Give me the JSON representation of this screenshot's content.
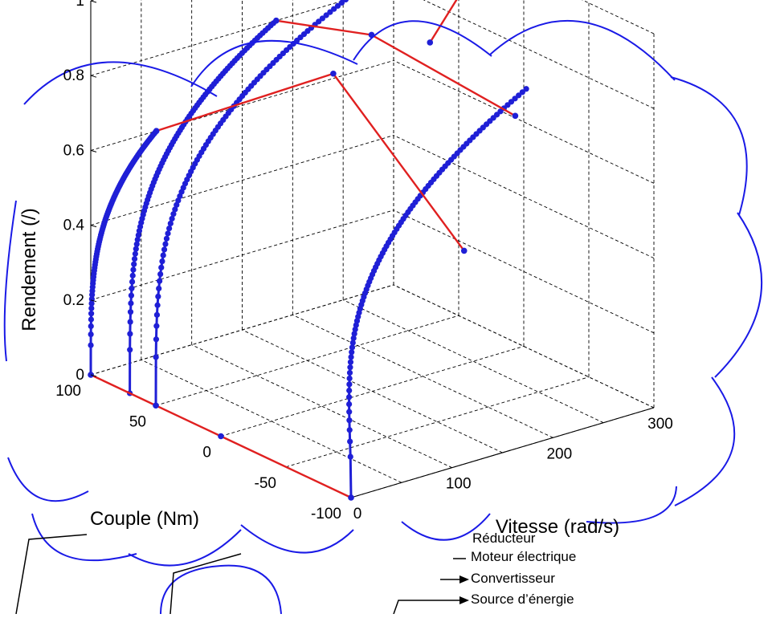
{
  "chart_data": {
    "type": "line",
    "projection": "3d",
    "title": "",
    "xlabel": "Vitesse (rad/s)",
    "ylabel": "Couple (Nm)",
    "zlabel": "Rendement (/)",
    "xlim": [
      0,
      300
    ],
    "ylim": [
      -100,
      100
    ],
    "zlim": [
      0,
      1
    ],
    "x_ticks": [
      "0",
      "100",
      "200",
      "300"
    ],
    "y_ticks": [
      "100",
      "50",
      "0",
      "-50",
      "-100"
    ],
    "z_ticks": [
      "0",
      "0.2",
      "0.4",
      "0.6",
      "0.8",
      "1"
    ],
    "grid": "on",
    "colors": {
      "curves": "#1f1fd6",
      "links": "#e02020",
      "clouds": "#1a1ae6",
      "arrows": "#000000"
    },
    "series": [
      {
        "color": "#1f1fd6",
        "markers": "dots",
        "start": [
          0,
          100,
          0
        ],
        "end": [
          65,
          100,
          0.6
        ]
      },
      {
        "color": "#1f1fd6",
        "markers": "dots",
        "start": [
          0,
          70,
          0
        ],
        "end": [
          145,
          70,
          0.88
        ]
      },
      {
        "color": "#1f1fd6",
        "markers": "dots",
        "start": [
          0,
          50,
          0
        ],
        "end": [
          225,
          50,
          0.98
        ]
      },
      {
        "color": "#1f1fd6",
        "markers": "dots",
        "start": [
          0,
          -100,
          0
        ],
        "end": [
          238,
          -50,
          0.82
        ]
      }
    ],
    "links": [
      {
        "points": [
          [
            0,
            100,
            0
          ],
          [
            0,
            50,
            0
          ],
          [
            0,
            0,
            0
          ],
          [
            0,
            -100,
            0
          ]
        ]
      },
      {
        "points": [
          [
            65,
            100,
            0.6
          ],
          [
            150,
            30,
            0.8
          ],
          [
            170,
            -55,
            0.45
          ]
        ]
      },
      {
        "points": [
          [
            145,
            70,
            0.88
          ],
          [
            175,
            20,
            0.9
          ],
          [
            240,
            -40,
            0.73
          ]
        ]
      },
      {
        "points": [
          [
            225,
            50,
            0.98
          ],
          [
            255,
            30,
            0.98
          ],
          [
            280,
            20,
            1.0
          ],
          [
            220,
            10,
            0.86
          ]
        ]
      }
    ],
    "annotations": [
      "Réducteur",
      "Moteur électrique",
      "Convertisseur",
      "Source d’énergie"
    ]
  }
}
